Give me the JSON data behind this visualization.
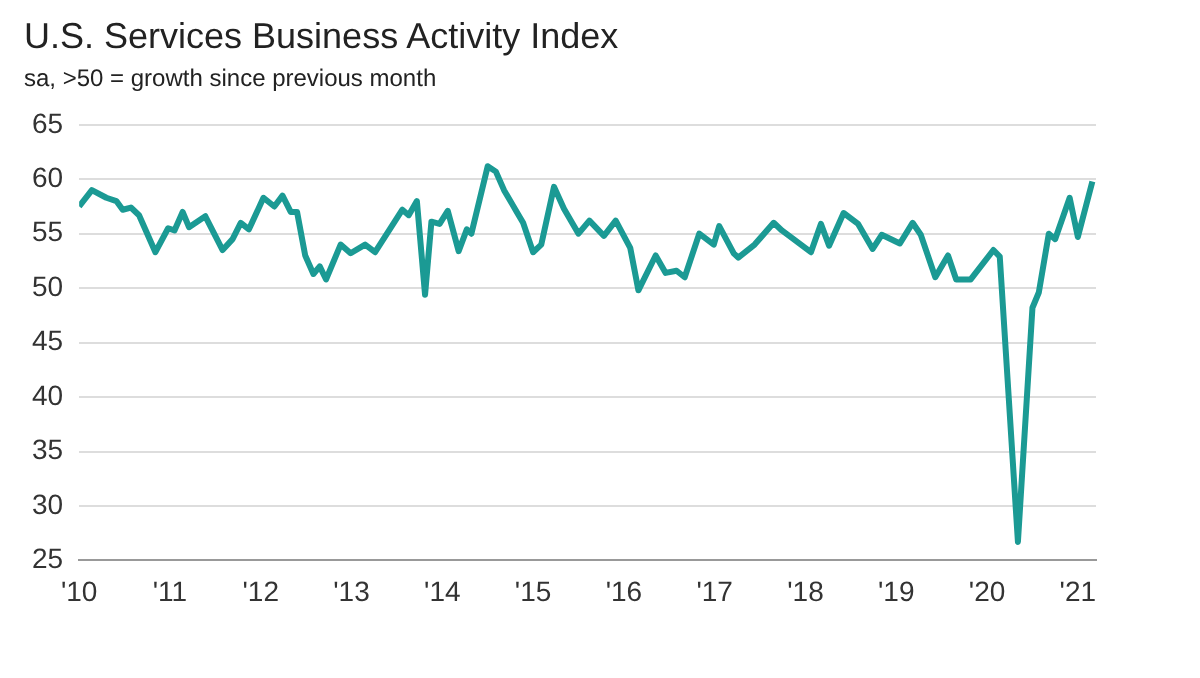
{
  "chart_data": {
    "type": "line",
    "title": "U.S. Services Business Activity Index",
    "subtitle": "sa, >50 = growth since previous month",
    "x": [
      2010.0,
      2010.14,
      2010.3,
      2010.41,
      2010.48,
      2010.57,
      2010.66,
      2010.75,
      2010.84,
      2010.98,
      2011.05,
      2011.14,
      2011.21,
      2011.39,
      2011.58,
      2011.69,
      2011.78,
      2011.87,
      2012.03,
      2012.15,
      2012.24,
      2012.33,
      2012.4,
      2012.49,
      2012.58,
      2012.65,
      2012.72,
      2012.88,
      2012.99,
      2013.15,
      2013.26,
      2013.56,
      2013.63,
      2013.72,
      2013.81,
      2013.88,
      2013.97,
      2014.06,
      2014.18,
      2014.27,
      2014.32,
      2014.5,
      2014.59,
      2014.68,
      2014.82,
      2014.89,
      2015.0,
      2015.09,
      2015.23,
      2015.34,
      2015.5,
      2015.62,
      2015.78,
      2015.91,
      2016.07,
      2016.16,
      2016.35,
      2016.46,
      2016.58,
      2016.67,
      2016.83,
      2016.99,
      2017.05,
      2017.21,
      2017.26,
      2017.44,
      2017.65,
      2017.74,
      2018.06,
      2018.17,
      2018.26,
      2018.42,
      2018.58,
      2018.74,
      2018.84,
      2019.04,
      2019.18,
      2019.27,
      2019.43,
      2019.57,
      2019.66,
      2019.82,
      2020.07,
      2020.14,
      2020.34,
      2020.5,
      2020.57,
      2020.68,
      2020.75,
      2020.91,
      2021.0,
      2021.16
    ],
    "series": [
      {
        "color": "#1b9a94",
        "values": [
          57.5,
          59,
          58.3,
          58,
          57.2,
          57.4,
          56.7,
          55,
          53.3,
          55.5,
          55.3,
          57,
          55.6,
          56.6,
          53.5,
          54.5,
          56,
          55.4,
          58.3,
          57.5,
          58.5,
          57,
          57,
          53,
          51.3,
          52,
          50.8,
          54,
          53.2,
          54,
          53.3,
          57.2,
          56.7,
          58,
          49.4,
          56.1,
          55.9,
          57.1,
          53.4,
          55.4,
          55,
          61.2,
          60.7,
          59,
          57,
          56,
          53.3,
          54,
          59.3,
          57.3,
          55,
          56.2,
          54.8,
          56.2,
          53.7,
          49.8,
          53,
          51.4,
          51.6,
          51,
          55,
          54,
          55.7,
          53.2,
          52.8,
          54,
          56,
          55.3,
          53.3,
          55.9,
          53.9,
          56.9,
          55.9,
          53.6,
          54.9,
          54.1,
          56,
          54.9,
          51,
          53,
          50.8,
          50.8,
          53.5,
          52.9,
          26.7,
          48.2,
          49.6,
          55,
          54.5,
          58.3,
          54.7,
          59.8
        ]
      }
    ],
    "xlim": [
      2010,
      2021.2
    ],
    "xticks": [
      {
        "value": 2010,
        "label": "'10"
      },
      {
        "value": 2011,
        "label": "'11"
      },
      {
        "value": 2012,
        "label": "'12"
      },
      {
        "value": 2013,
        "label": "'13"
      },
      {
        "value": 2014,
        "label": "'14"
      },
      {
        "value": 2015,
        "label": "'15"
      },
      {
        "value": 2016,
        "label": "'16"
      },
      {
        "value": 2017,
        "label": "'17"
      },
      {
        "value": 2018,
        "label": "'18"
      },
      {
        "value": 2019,
        "label": "'19"
      },
      {
        "value": 2020,
        "label": "'20"
      },
      {
        "value": 2021,
        "label": "'21"
      }
    ],
    "ylim": [
      25,
      65
    ],
    "yticks": [
      25,
      30,
      35,
      40,
      45,
      50,
      55,
      60,
      65
    ],
    "grid": "y",
    "legend": false,
    "marker": "none",
    "line_style": "solid"
  }
}
